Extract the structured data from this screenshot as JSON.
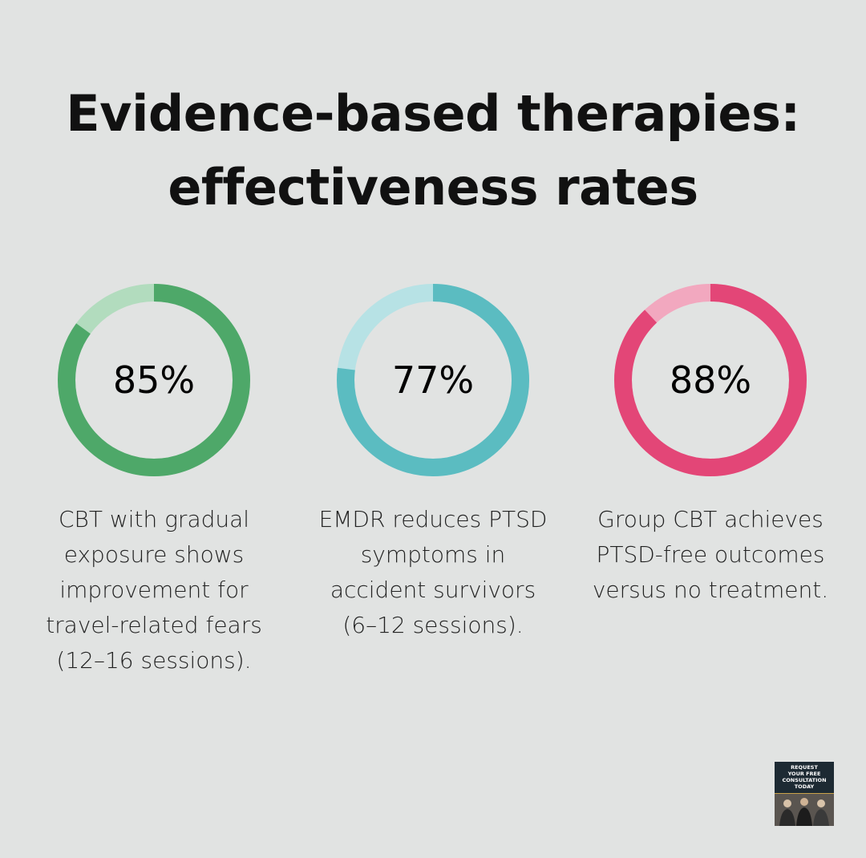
{
  "title_lines": [
    "Evidence-based therapies:",
    "effectiveness rates"
  ],
  "chart_data": {
    "type": "pie",
    "title": "Evidence-based therapies: effectiveness rates",
    "series": [
      {
        "value": 85,
        "value_label": "85%",
        "description": [
          "CBT with gradual",
          "exposure shows",
          "improvement for",
          "travel-related fears",
          "(12–16 sessions)."
        ],
        "color": "#4ea869",
        "track_color": "#b2dcbe"
      },
      {
        "value": 77,
        "value_label": "77%",
        "description": [
          "EMDR reduces PTSD",
          "symptoms in",
          "accident survivors",
          "(6–12 sessions)."
        ],
        "color": "#5bbcc1",
        "track_color": "#b7e2e5"
      },
      {
        "value": 88,
        "value_label": "88%",
        "description": [
          "Group CBT achieves",
          "PTSD-free outcomes",
          "versus no treatment."
        ],
        "color": "#e34677",
        "track_color": "#f2a8bf"
      }
    ]
  },
  "badge": {
    "lines": [
      "REQUEST",
      "YOUR FREE",
      "CONSULTATION",
      "TODAY"
    ],
    "background": "#1d2a33"
  }
}
